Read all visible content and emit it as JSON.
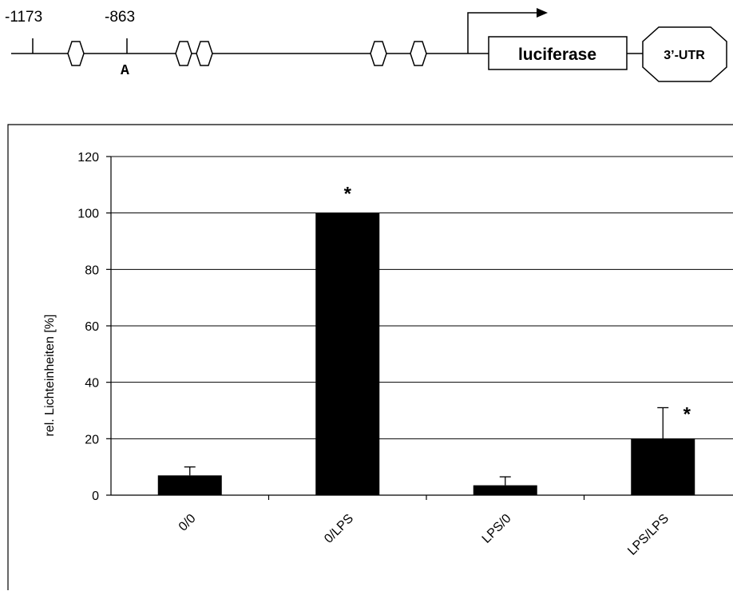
{
  "diagram": {
    "position_labels": [
      "-1173",
      "-863"
    ],
    "mutation_label": "A",
    "reporter_label": "luciferase",
    "utr_label": "3’-UTR"
  },
  "chart_data": {
    "type": "bar",
    "categories": [
      "0/0",
      "0/LPS",
      "LPS/0",
      "LPS/LPS"
    ],
    "values": [
      7,
      100,
      3.5,
      20
    ],
    "error_up": [
      3,
      0,
      3,
      11
    ],
    "significance": [
      "",
      "*",
      "",
      "*"
    ],
    "ylabel": "rel. Lichteinheiten [%]",
    "xlabel": "",
    "ylim": [
      0,
      120
    ],
    "yticks": [
      0,
      20,
      40,
      60,
      80,
      100,
      120
    ],
    "grid": true,
    "bar_color": "#000000"
  }
}
